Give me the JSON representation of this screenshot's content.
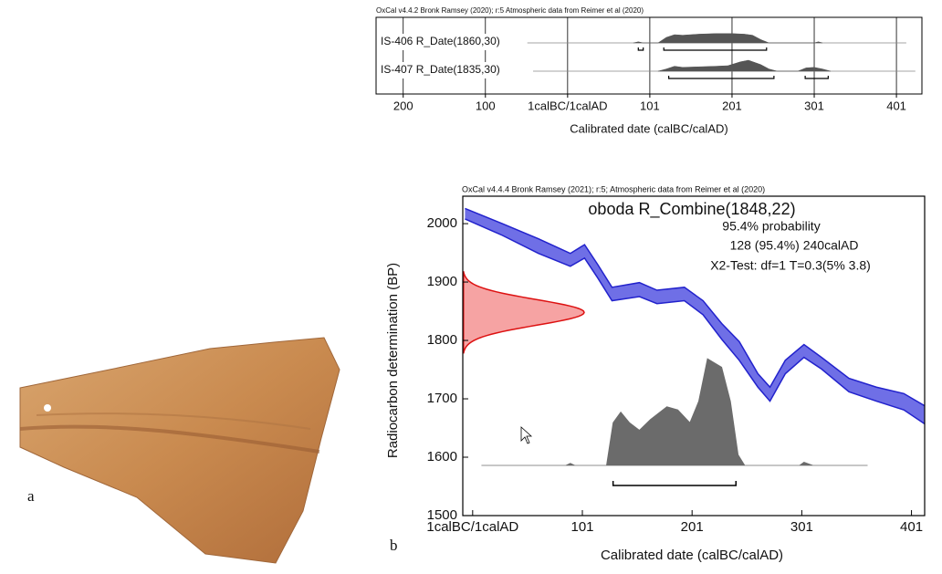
{
  "figure": {
    "panel_labels": [
      "a",
      "b"
    ]
  },
  "chart_data": [
    {
      "type": "multiplot",
      "header": "OxCal v4.4.2 Bronk Ramsey (2020); r:5 Atmospheric data from Reimer et al (2020)",
      "xlabel": "Calibrated date (calBC/calAD)",
      "xlim": [
        -233,
        431
      ],
      "xticks": [
        {
          "value": -200,
          "label": "200"
        },
        {
          "value": -100,
          "label": "100"
        },
        {
          "value": 0,
          "label": "1calBC/1calAD"
        },
        {
          "value": 100,
          "label": "101"
        },
        {
          "value": 200,
          "label": "201"
        },
        {
          "value": 300,
          "label": "301"
        },
        {
          "value": 400,
          "label": "401"
        }
      ],
      "grid": true,
      "color": "#555555",
      "series": [
        {
          "name": "IS-406 R_Date(1860,30)",
          "line": [
            -49,
            412
          ],
          "x": [
            80,
            86,
            92,
            110,
            120,
            130,
            140,
            160,
            180,
            200,
            215,
            225,
            235,
            245,
            300,
            305,
            310
          ],
          "values": [
            0,
            0.1,
            0,
            0,
            0.5,
            0.75,
            0.7,
            0.8,
            0.85,
            0.85,
            0.8,
            0.7,
            0.3,
            0,
            0,
            0.1,
            0
          ],
          "brackets": [
            [
              86,
              92
            ],
            [
              117,
              242
            ]
          ]
        },
        {
          "name": "IS-407 R_Date(1835,30)",
          "line": [
            -42,
            423
          ],
          "x": [
            110,
            120,
            130,
            140,
            160,
            180,
            195,
            210,
            220,
            235,
            245,
            255,
            280,
            290,
            300,
            310,
            320
          ],
          "values": [
            0,
            0.2,
            0.45,
            0.35,
            0.4,
            0.45,
            0.5,
            0.85,
            1.0,
            0.6,
            0.2,
            0,
            0,
            0.3,
            0.35,
            0.2,
            0
          ],
          "brackets": [
            [
              123,
              251
            ],
            [
              289,
              317
            ]
          ]
        }
      ]
    },
    {
      "type": "calibration",
      "header": "OxCal v4.4.4 Bronk Ramsey (2021); r:5; Atmospheric data from Reimer et al (2020)",
      "title": "oboda R_Combine(1848,22)",
      "annotations": [
        "95.4% probability",
        "128 (95.4%) 240calAD",
        "X2-Test: df=1 T=0.3(5% 3.8)"
      ],
      "xlabel": "Calibrated date (calBC/calAD)",
      "ylabel": "Radiocarbon determination (BP)",
      "xlim": [
        -9,
        412
      ],
      "ylim": [
        1500,
        2047
      ],
      "xticks": [
        {
          "value": 0,
          "label": "1calBC/1calAD"
        },
        {
          "value": 100,
          "label": "101"
        },
        {
          "value": 200,
          "label": "201"
        },
        {
          "value": 300,
          "label": "301"
        },
        {
          "value": 400,
          "label": "401"
        }
      ],
      "yticks": [
        1500,
        1600,
        1700,
        1800,
        1900,
        2000
      ],
      "curve": {
        "color": "#2222cc",
        "fill": "#6f6fe6",
        "x": [
          -7,
          27,
          60,
          89,
          102,
          114,
          127,
          152,
          168,
          193,
          210,
          227,
          243,
          260,
          271,
          285,
          302,
          318,
          343,
          368,
          393,
          412
        ],
        "upper": [
          2026,
          2000,
          1974,
          1949,
          1964,
          1930,
          1891,
          1899,
          1886,
          1891,
          1868,
          1829,
          1798,
          1743,
          1720,
          1766,
          1793,
          1771,
          1735,
          1720,
          1709,
          1688
        ],
        "lower": [
          2008,
          1980,
          1949,
          1927,
          1941,
          1907,
          1868,
          1875,
          1863,
          1868,
          1844,
          1802,
          1766,
          1720,
          1696,
          1743,
          1771,
          1751,
          1712,
          1696,
          1681,
          1657
        ]
      },
      "radiocarbon": {
        "mean": 1848,
        "sd": 22,
        "color": "#dd1111",
        "fill": "#f6a3a3"
      },
      "posterior": {
        "color": "#6b6b6b",
        "x": [
          8,
          85,
          89,
          93,
          122,
          128,
          135,
          143,
          152,
          162,
          177,
          187,
          198,
          206,
          214,
          227,
          235,
          242,
          248,
          298,
          302,
          310,
          360
        ],
        "values": [
          0,
          0,
          0.02,
          0,
          0,
          0.4,
          0.5,
          0.4,
          0.33,
          0.43,
          0.55,
          0.52,
          0.4,
          0.6,
          1.0,
          0.92,
          0.6,
          0.1,
          0,
          0,
          0.03,
          0,
          0
        ]
      },
      "range": [
        128,
        240
      ]
    }
  ]
}
